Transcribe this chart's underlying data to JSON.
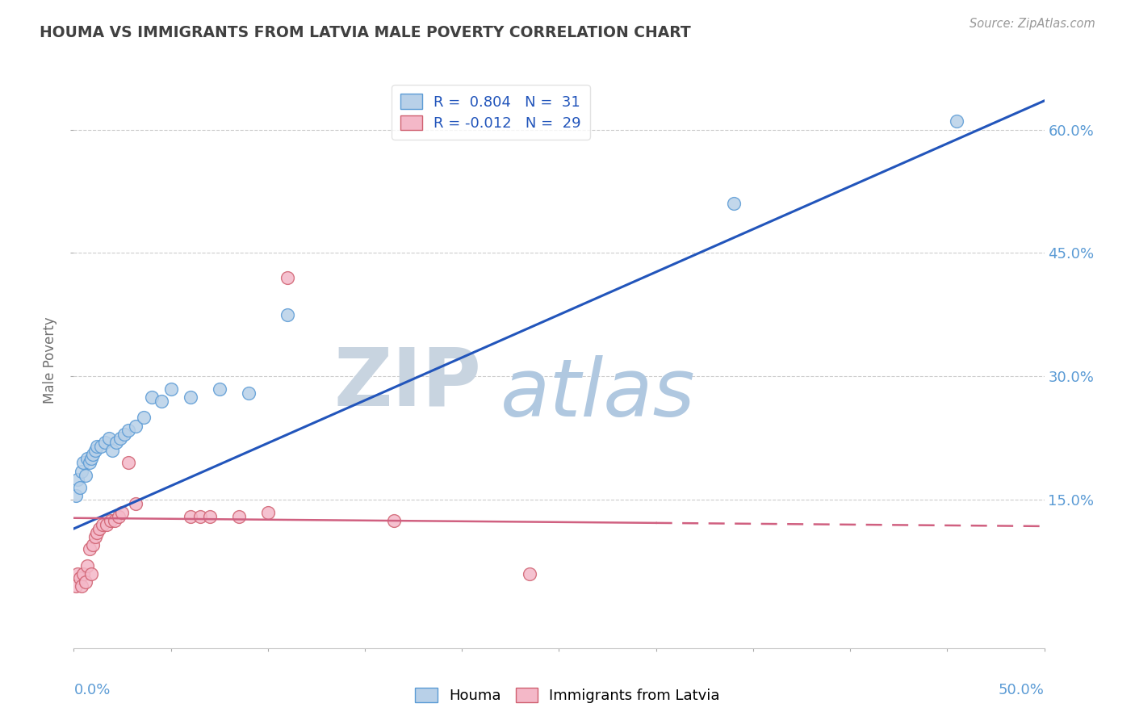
{
  "title": "HOUMA VS IMMIGRANTS FROM LATVIA MALE POVERTY CORRELATION CHART",
  "source_text": "Source: ZipAtlas.com",
  "ylabel": "Male Poverty",
  "right_yticks": [
    "15.0%",
    "30.0%",
    "45.0%",
    "60.0%"
  ],
  "right_ytick_vals": [
    0.15,
    0.3,
    0.45,
    0.6
  ],
  "xlim": [
    0.0,
    0.5
  ],
  "ylim": [
    -0.03,
    0.67
  ],
  "houma_color": "#b8d0e8",
  "houma_edge": "#5b9bd5",
  "latvia_color": "#f4b8c8",
  "latvia_edge": "#d06070",
  "trend_houma_color": "#2255bb",
  "trend_latvia_color": "#d06080",
  "trend_houma_x0": 0.0,
  "trend_houma_y0": 0.115,
  "trend_houma_x1": 0.5,
  "trend_houma_y1": 0.635,
  "trend_latvia_x0": 0.0,
  "trend_latvia_y0": 0.128,
  "trend_latvia_x1": 0.3,
  "trend_latvia_y1": 0.122,
  "trend_latvia_dash_x0": 0.3,
  "trend_latvia_dash_y0": 0.122,
  "trend_latvia_dash_x1": 0.5,
  "trend_latvia_dash_y1": 0.118,
  "watermark_zip": "ZIP",
  "watermark_atlas": "atlas",
  "watermark_color_zip": "#d0dce8",
  "watermark_color_atlas": "#b8cce0",
  "grid_color": "#cccccc",
  "bg_color": "#ffffff",
  "title_color": "#404040",
  "axis_label_color": "#5b9bd5",
  "houma_x": [
    0.001,
    0.002,
    0.003,
    0.004,
    0.005,
    0.006,
    0.007,
    0.008,
    0.009,
    0.01,
    0.011,
    0.012,
    0.014,
    0.016,
    0.018,
    0.02,
    0.022,
    0.024,
    0.026,
    0.028,
    0.032,
    0.036,
    0.04,
    0.045,
    0.05,
    0.06,
    0.075,
    0.09,
    0.11,
    0.34,
    0.455
  ],
  "houma_y": [
    0.155,
    0.175,
    0.165,
    0.185,
    0.195,
    0.18,
    0.2,
    0.195,
    0.2,
    0.205,
    0.21,
    0.215,
    0.215,
    0.22,
    0.225,
    0.21,
    0.22,
    0.225,
    0.23,
    0.235,
    0.24,
    0.25,
    0.275,
    0.27,
    0.285,
    0.275,
    0.285,
    0.28,
    0.375,
    0.51,
    0.61
  ],
  "latvia_x": [
    0.001,
    0.002,
    0.003,
    0.004,
    0.005,
    0.006,
    0.007,
    0.008,
    0.009,
    0.01,
    0.011,
    0.012,
    0.013,
    0.015,
    0.017,
    0.019,
    0.021,
    0.023,
    0.025,
    0.028,
    0.032,
    0.06,
    0.065,
    0.07,
    0.085,
    0.1,
    0.11,
    0.165,
    0.235
  ],
  "latvia_y": [
    0.045,
    0.06,
    0.055,
    0.045,
    0.06,
    0.05,
    0.07,
    0.09,
    0.06,
    0.095,
    0.105,
    0.11,
    0.115,
    0.12,
    0.12,
    0.125,
    0.125,
    0.13,
    0.135,
    0.195,
    0.145,
    0.13,
    0.13,
    0.13,
    0.13,
    0.135,
    0.42,
    0.125,
    0.06
  ],
  "legend_label1": "R =  0.804   N =  31",
  "legend_label2": "R = -0.012   N =  29",
  "bottom_legend_houma": "Houma",
  "bottom_legend_latvia": "Immigrants from Latvia"
}
